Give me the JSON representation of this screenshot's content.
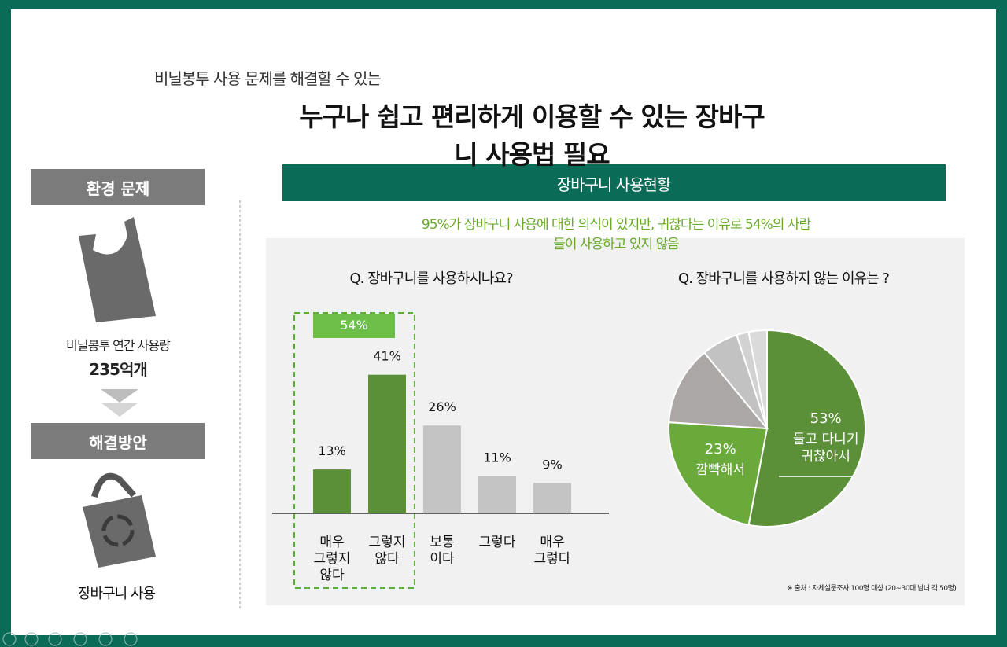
{
  "header": {
    "subtitle": "비닐봉투 사용 문제를 해결할 수 있는",
    "title": "누구나 쉽고 편리하게 이용할 수 있는 장바구니 사용법 필요"
  },
  "left": {
    "problem": "환경 문제",
    "usage_label": "비닐봉투 연간 사용량",
    "usage_value": "235억개",
    "solution": "해결방안",
    "solution_label": "장바구니 사용"
  },
  "panel": {
    "heading": "장바구니 사용현황",
    "summary": "95%가 장바구니 사용에 대한 의식이 있지만, 귀찮다는 이유로 54%의 사람들이 사용하고 있지 않음",
    "source": "※ 출처 : 자체설문조사 100명 대상 (20~30대 남녀 각 50명)"
  },
  "chart_data": [
    {
      "type": "bar",
      "title": "Q. 장바구니를 사용하시나요?",
      "categories": [
        "매우\n그렇지\n않다",
        "그렇지\n않다",
        "보통\n이다",
        "그렇다",
        "매우\n그렇다"
      ],
      "values": [
        13,
        41,
        26,
        11,
        9
      ],
      "value_labels": [
        "13%",
        "41%",
        "26%",
        "11%",
        "9%"
      ],
      "colors": [
        "#5b8f38",
        "#5b8f38",
        "#c4c4c4",
        "#c4c4c4",
        "#c4c4c4"
      ],
      "annotation": "54%"
    },
    {
      "type": "pie",
      "title": "Q. 장바구니를 사용하지 않는 이유는 ?",
      "values": [
        53,
        23,
        13,
        6,
        2,
        3
      ],
      "value_labels": [
        "53%",
        "23%",
        null,
        null,
        null,
        null
      ],
      "labels": [
        "들고 다니기\n귀찮아서",
        "깜빡해서",
        null,
        null,
        null,
        null
      ],
      "colors": [
        "#5b8f38",
        "#6aaa3b",
        "#aba7a6",
        "#c2c2c2",
        "#d2d2d2",
        "#dadada"
      ]
    }
  ]
}
